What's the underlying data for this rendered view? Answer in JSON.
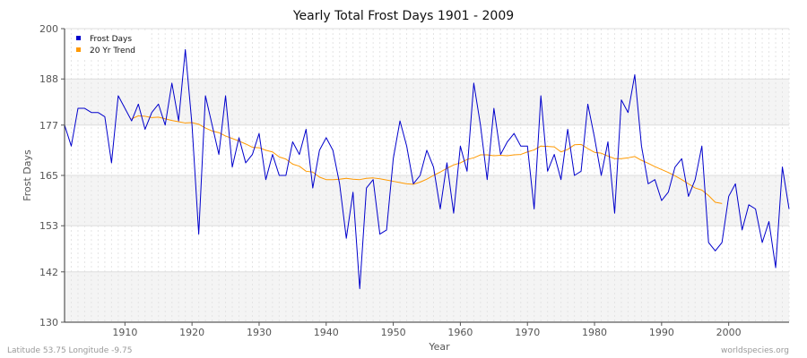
{
  "chart_data": {
    "type": "line",
    "title": "Yearly Total Frost Days 1901 - 2009",
    "xlabel": "Year",
    "ylabel": "Frost Days",
    "xlim": [
      1901,
      2009
    ],
    "ylim": [
      130,
      200
    ],
    "x_ticks": [
      1910,
      1920,
      1930,
      1940,
      1950,
      1960,
      1970,
      1980,
      1990,
      2000
    ],
    "y_ticks": [
      130,
      142,
      153,
      165,
      177,
      188,
      200
    ],
    "grid": true,
    "legend_position": "top-left",
    "series": [
      {
        "name": "Frost Days",
        "color": "#0000cc",
        "x": [
          1901,
          1902,
          1903,
          1904,
          1905,
          1906,
          1907,
          1908,
          1909,
          1910,
          1911,
          1912,
          1913,
          1914,
          1915,
          1916,
          1917,
          1918,
          1919,
          1920,
          1921,
          1922,
          1923,
          1924,
          1925,
          1926,
          1927,
          1928,
          1929,
          1930,
          1931,
          1932,
          1933,
          1934,
          1935,
          1936,
          1937,
          1938,
          1939,
          1940,
          1941,
          1942,
          1943,
          1944,
          1945,
          1946,
          1947,
          1948,
          1949,
          1950,
          1951,
          1952,
          1953,
          1954,
          1955,
          1956,
          1957,
          1958,
          1959,
          1960,
          1961,
          1962,
          1963,
          1964,
          1965,
          1966,
          1967,
          1968,
          1969,
          1970,
          1971,
          1972,
          1973,
          1974,
          1975,
          1976,
          1977,
          1978,
          1979,
          1980,
          1981,
          1982,
          1983,
          1984,
          1985,
          1986,
          1987,
          1988,
          1989,
          1990,
          1991,
          1992,
          1993,
          1994,
          1995,
          1996,
          1997,
          1998,
          1999,
          2000,
          2001,
          2002,
          2003,
          2004,
          2005,
          2006,
          2007,
          2008,
          2009
        ],
        "values": [
          177,
          172,
          181,
          181,
          180,
          180,
          179,
          168,
          184,
          181,
          178,
          182,
          176,
          180,
          182,
          177,
          187,
          178,
          195,
          177,
          151,
          184,
          177,
          170,
          184,
          167,
          174,
          168,
          170,
          175,
          164,
          170,
          165,
          165,
          173,
          170,
          176,
          162,
          171,
          174,
          171,
          163,
          150,
          161,
          138,
          162,
          164,
          151,
          152,
          169,
          178,
          172,
          163,
          165,
          171,
          167,
          157,
          168,
          156,
          172,
          166,
          187,
          177,
          164,
          181,
          170,
          173,
          175,
          172,
          172,
          157,
          184,
          166,
          170,
          164,
          176,
          165,
          166,
          182,
          174,
          165,
          173,
          156,
          183,
          180,
          189,
          172,
          163,
          164,
          159,
          161,
          167,
          169,
          160,
          164,
          172,
          149,
          147,
          149,
          160,
          163,
          152,
          158,
          157,
          149,
          154,
          143,
          167,
          157
        ]
      },
      {
        "name": "20 Yr Trend",
        "color": "#ff9900",
        "x": [
          1911,
          1912,
          1913,
          1914,
          1915,
          1916,
          1917,
          1918,
          1919,
          1920,
          1921,
          1922,
          1923,
          1924,
          1925,
          1926,
          1927,
          1928,
          1929,
          1930,
          1931,
          1932,
          1933,
          1934,
          1935,
          1936,
          1937,
          1938,
          1939,
          1940,
          1941,
          1942,
          1943,
          1944,
          1945,
          1946,
          1947,
          1948,
          1949,
          1950,
          1951,
          1952,
          1953,
          1954,
          1955,
          1956,
          1957,
          1958,
          1959,
          1960,
          1961,
          1962,
          1963,
          1964,
          1965,
          1966,
          1967,
          1968,
          1969,
          1970,
          1971,
          1972,
          1973,
          1974,
          1975,
          1976,
          1977,
          1978,
          1979,
          1980,
          1981,
          1982,
          1983,
          1984,
          1985,
          1986,
          1987,
          1988,
          1989,
          1990,
          1991,
          1992,
          1993,
          1994,
          1995,
          1996,
          1997,
          1998,
          1999
        ],
        "values": [
          178.5,
          179.2,
          179.1,
          178.8,
          178.9,
          178.5,
          178.1,
          177.8,
          177.5,
          177.6,
          177.2,
          176.3,
          175.6,
          175.2,
          174.4,
          173.8,
          173.2,
          172.5,
          171.7,
          171.6,
          171.0,
          170.6,
          169.4,
          168.9,
          167.7,
          167.2,
          166.0,
          165.8,
          164.6,
          164.0,
          164.0,
          164.1,
          164.3,
          164.1,
          164.0,
          164.3,
          164.4,
          164.2,
          163.9,
          163.6,
          163.3,
          163.0,
          162.9,
          163.4,
          164.1,
          165.0,
          165.8,
          166.7,
          167.5,
          168.0,
          168.8,
          169.2,
          169.9,
          169.9,
          169.7,
          169.8,
          169.7,
          169.9,
          170.0,
          170.6,
          171.1,
          172.0,
          171.9,
          171.8,
          170.6,
          171.2,
          172.3,
          172.4,
          171.4,
          170.5,
          170.3,
          169.6,
          169.0,
          169.0,
          169.2,
          169.5,
          168.6,
          167.9,
          167.1,
          166.4,
          165.7,
          164.9,
          164.0,
          163.0,
          162.0,
          161.5,
          160.2,
          158.6,
          158.3
        ]
      }
    ]
  },
  "footer": {
    "location": "Latitude 53.75 Longitude -9.75",
    "source": "worldspecies.org"
  }
}
